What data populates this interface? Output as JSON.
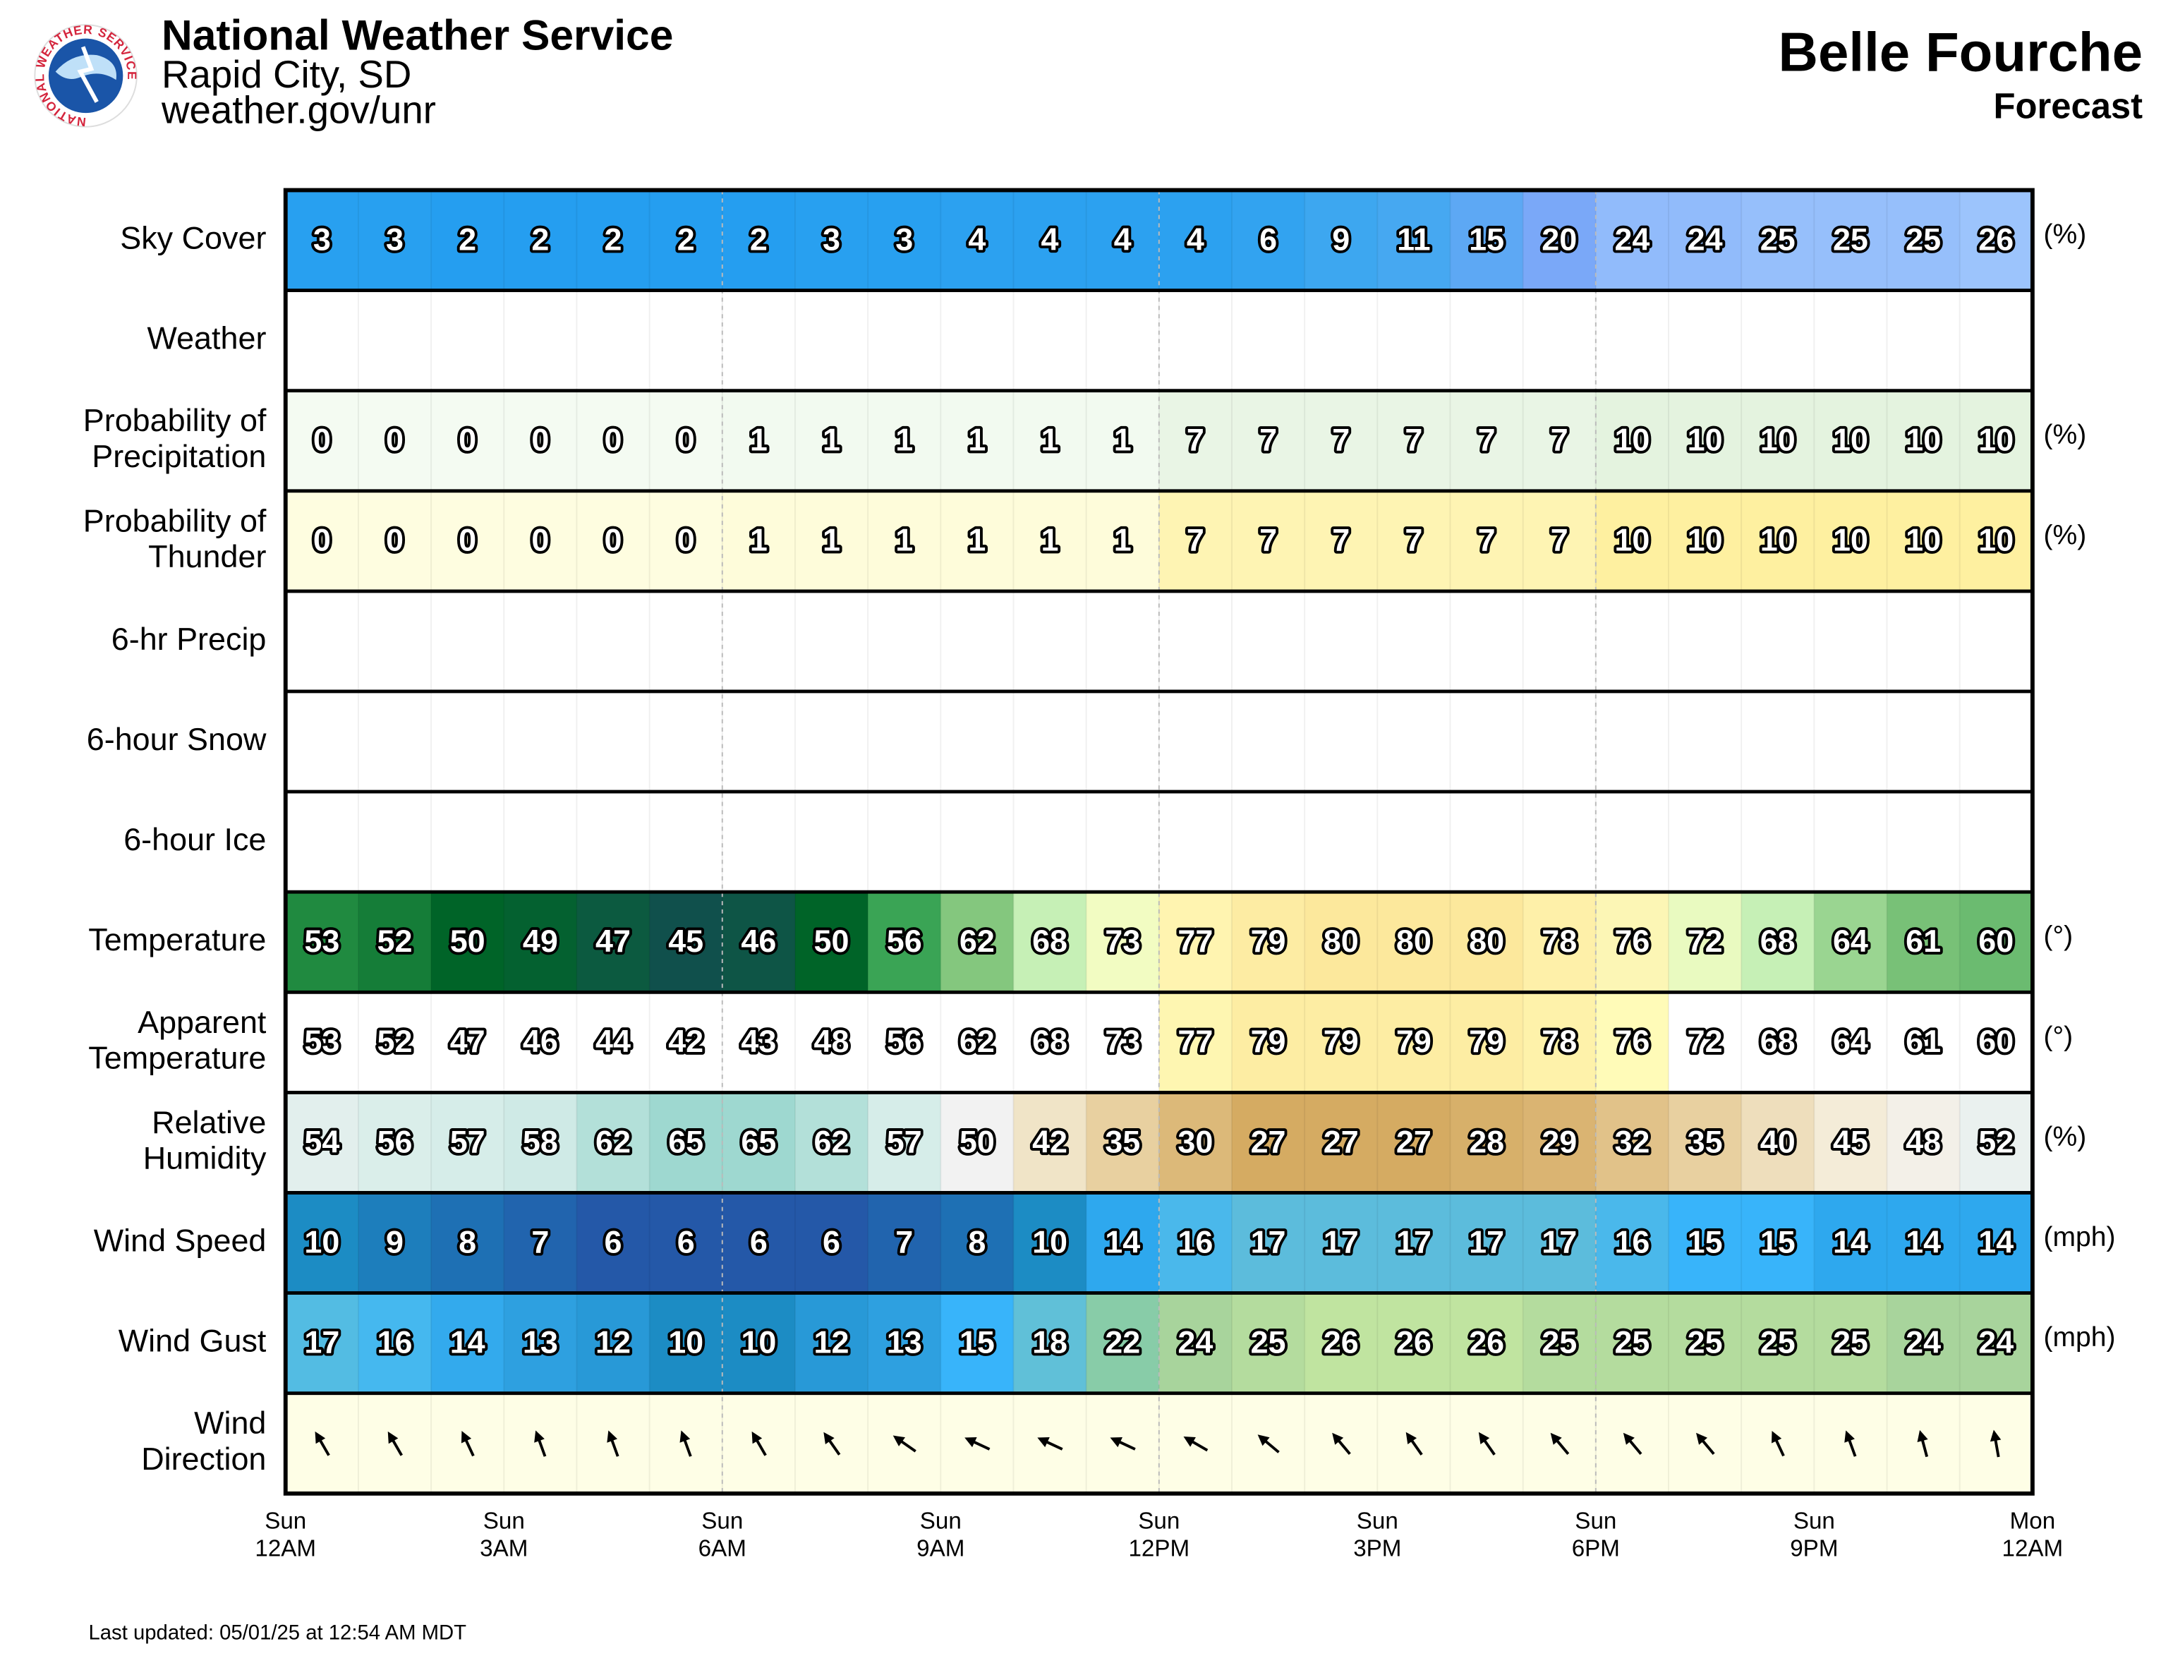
{
  "header": {
    "org": "National Weather Service",
    "office": "Rapid City, SD",
    "url": "weather.gov/unr",
    "logo_text": "NATIONAL WEATHER SERVICE",
    "title": "Belle Fourche",
    "subtitle": "Forecast"
  },
  "footer": "Last updated: 05/01/25 at 12:54 AM MDT",
  "time_axis": {
    "hours": 24,
    "major_lines": [
      6,
      12,
      18
    ],
    "ticks": [
      {
        "index": 0,
        "lines": [
          "Sun",
          "12AM"
        ]
      },
      {
        "index": 3,
        "lines": [
          "Sun",
          "3AM"
        ]
      },
      {
        "index": 6,
        "lines": [
          "Sun",
          "6AM"
        ]
      },
      {
        "index": 9,
        "lines": [
          "Sun",
          "9AM"
        ]
      },
      {
        "index": 12,
        "lines": [
          "Sun",
          "12PM"
        ]
      },
      {
        "index": 15,
        "lines": [
          "Sun",
          "3PM"
        ]
      },
      {
        "index": 18,
        "lines": [
          "Sun",
          "6PM"
        ]
      },
      {
        "index": 21,
        "lines": [
          "Sun",
          "9PM"
        ]
      },
      {
        "index": 24,
        "lines": [
          "Mon",
          "12AM"
        ]
      }
    ]
  },
  "rows": [
    {
      "label": [
        "Sky Cover"
      ],
      "unit": "(%)",
      "values": [
        3,
        3,
        2,
        2,
        2,
        2,
        2,
        3,
        3,
        4,
        4,
        4,
        4,
        6,
        9,
        11,
        15,
        20,
        24,
        24,
        25,
        25,
        25,
        26
      ],
      "color_scale": [
        [
          0,
          "#1e9cf0"
        ],
        [
          10,
          "#40a8f0"
        ],
        [
          20,
          "#7aa8f8"
        ],
        [
          26,
          "#9cc4fc"
        ]
      ]
    },
    {
      "label": [
        "Weather"
      ]
    },
    {
      "label": [
        "Probability of",
        "Precipitation"
      ],
      "unit": "(%)",
      "values": [
        0,
        0,
        0,
        0,
        0,
        0,
        1,
        1,
        1,
        1,
        1,
        1,
        7,
        7,
        7,
        7,
        7,
        7,
        10,
        10,
        10,
        10,
        10,
        10
      ],
      "color_scale": [
        [
          0,
          "#f4fbf2"
        ],
        [
          10,
          "#e4f3df"
        ]
      ]
    },
    {
      "label": [
        "Probability of",
        "Thunder"
      ],
      "unit": "(%)",
      "values": [
        0,
        0,
        0,
        0,
        0,
        0,
        1,
        1,
        1,
        1,
        1,
        1,
        7,
        7,
        7,
        7,
        7,
        7,
        10,
        10,
        10,
        10,
        10,
        10
      ],
      "color_scale": [
        [
          0,
          "#fefde0"
        ],
        [
          10,
          "#fef0a0"
        ]
      ]
    },
    {
      "label": [
        "6-hr Precip"
      ]
    },
    {
      "label": [
        "6-hour Snow"
      ]
    },
    {
      "label": [
        "6-hour Ice"
      ]
    },
    {
      "label": [
        "Temperature"
      ],
      "unit": "(°)",
      "values": [
        53,
        52,
        50,
        49,
        47,
        45,
        46,
        50,
        56,
        62,
        68,
        73,
        77,
        79,
        80,
        80,
        80,
        78,
        76,
        72,
        68,
        64,
        61,
        60
      ],
      "color_scale": [
        [
          45,
          "#10504c"
        ],
        [
          47,
          "#0c5a40"
        ],
        [
          50,
          "#006428"
        ],
        [
          53,
          "#208a40"
        ],
        [
          56,
          "#3aa455"
        ],
        [
          62,
          "#84c77e"
        ],
        [
          68,
          "#c6f0b6"
        ],
        [
          73,
          "#f2fcc2"
        ],
        [
          77,
          "#fff4b0"
        ],
        [
          80,
          "#fce89c"
        ]
      ]
    },
    {
      "label": [
        "Apparent",
        "Temperature"
      ],
      "unit": "(°)",
      "values": [
        53,
        52,
        47,
        46,
        44,
        42,
        43,
        48,
        56,
        62,
        68,
        73,
        77,
        79,
        79,
        79,
        79,
        78,
        76,
        72,
        68,
        64,
        61,
        60
      ],
      "color_scale": [
        [
          75,
          "#ffffff"
        ],
        [
          76,
          "#fffbb8"
        ],
        [
          80,
          "#fce89c"
        ]
      ]
    },
    {
      "label": [
        "Relative",
        "Humidity"
      ],
      "unit": "(%)",
      "values": [
        54,
        56,
        57,
        58,
        62,
        65,
        65,
        62,
        57,
        50,
        42,
        35,
        30,
        27,
        27,
        27,
        28,
        29,
        32,
        35,
        40,
        45,
        48,
        52
      ],
      "color_scale": [
        [
          27,
          "#d5ab62"
        ],
        [
          35,
          "#e8d0a0"
        ],
        [
          45,
          "#f4ecd8"
        ],
        [
          50,
          "#f2f2f2"
        ],
        [
          57,
          "#d6ede9"
        ],
        [
          65,
          "#9ed8d0"
        ]
      ]
    },
    {
      "label": [
        "Wind Speed"
      ],
      "unit": "(mph)",
      "values": [
        10,
        9,
        8,
        7,
        6,
        6,
        6,
        6,
        7,
        8,
        10,
        14,
        16,
        17,
        17,
        17,
        17,
        17,
        16,
        15,
        15,
        14,
        14,
        14
      ],
      "color_scale": [
        [
          6,
          "#2458a8"
        ],
        [
          8,
          "#1e70b4"
        ],
        [
          10,
          "#1c8cc4"
        ],
        [
          14,
          "#2ea8ee"
        ],
        [
          15,
          "#38b4fa"
        ],
        [
          17,
          "#5cbcdc"
        ]
      ]
    },
    {
      "label": [
        "Wind Gust"
      ],
      "unit": "(mph)",
      "values": [
        17,
        16,
        14,
        13,
        12,
        10,
        10,
        12,
        13,
        15,
        18,
        22,
        24,
        25,
        26,
        26,
        26,
        25,
        25,
        25,
        25,
        25,
        24,
        24
      ],
      "color_scale": [
        [
          10,
          "#1c8cc4"
        ],
        [
          13,
          "#2ea0e0"
        ],
        [
          15,
          "#38b4fa"
        ],
        [
          18,
          "#60c0d8"
        ],
        [
          22,
          "#88cca8"
        ],
        [
          24,
          "#a8d49c"
        ],
        [
          26,
          "#c0e4a0"
        ]
      ]
    },
    {
      "label": [
        "Wind",
        "Direction"
      ],
      "arrows": true,
      "values": [
        150,
        150,
        155,
        160,
        160,
        160,
        150,
        145,
        125,
        115,
        115,
        115,
        120,
        130,
        140,
        145,
        145,
        140,
        140,
        140,
        155,
        160,
        165,
        170
      ],
      "color": "#fefee6"
    }
  ]
}
